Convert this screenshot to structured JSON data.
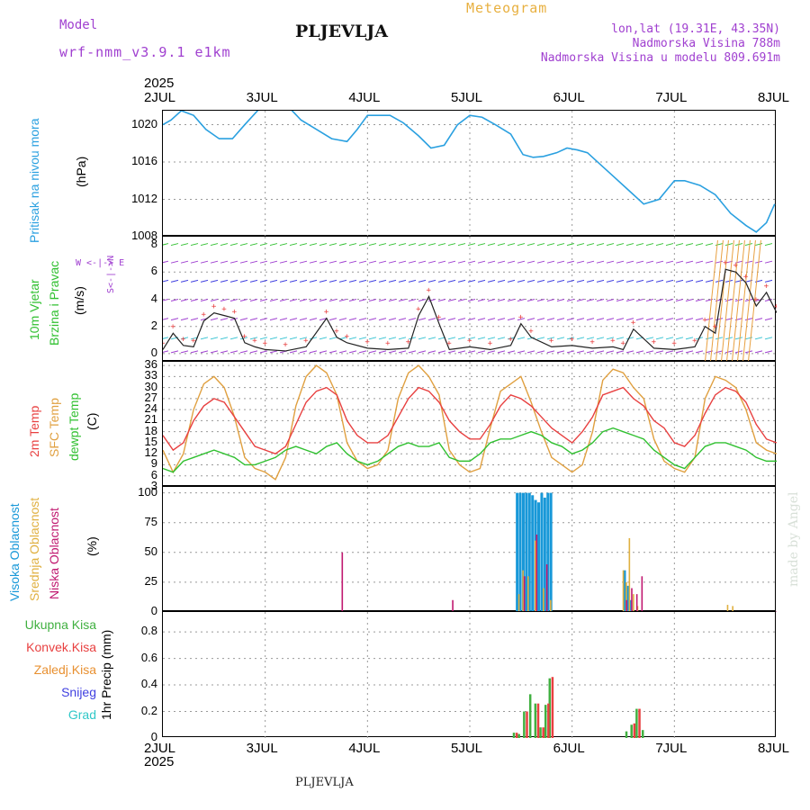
{
  "header": {
    "model_label": "Model",
    "model_value": "wrf-nmm_v3.9.1 e1km",
    "station": "PLJEVLJA",
    "title": "Meteogram",
    "coords": "lon,lat (19.31E, 43.35N)",
    "elevation": "Nadmorska Visina 788m",
    "model_elevation": "Nadmorska Visina u modelu 809.691m",
    "year_top": "2025",
    "year_bottom": "2025",
    "footer_station": "PLJEVLJA",
    "made_by": "made by Angel"
  },
  "day_labels": [
    "2JUL",
    "3JUL",
    "4JUL",
    "5JUL",
    "6JUL",
    "7JUL",
    "8JUL"
  ],
  "colors": {
    "pressure": "#2aa0e0",
    "temp2m": "#e84040",
    "sfc_temp": "#e0a040",
    "dewpt": "#30c030",
    "high_cloud": "#1898d8",
    "mid_cloud": "#e0b040",
    "low_cloud": "#c01870",
    "total_precip": "#40b040",
    "conv_precip": "#e84040",
    "strat_precip": "#e89030",
    "snow": "#4040e0",
    "hail": "#30c8c8",
    "wind_speed": "#222222",
    "gust": "#e84040"
  },
  "panels": {
    "pressure": {
      "labels": [
        "Pritisak na nivou mora",
        "(hPa)"
      ],
      "yticks": [
        "1008",
        "1012",
        "1016",
        "1020"
      ]
    },
    "wind": {
      "labels": [
        "10m Vjetar",
        "Brzina i Pravac",
        "(m/s)"
      ],
      "compass": "W <-|-> E",
      "compass_ns": "S<-|->N",
      "yticks": [
        "0",
        "2",
        "4",
        "6",
        "8"
      ]
    },
    "temp": {
      "labels": [
        "2m Temp",
        "SFC Temp",
        "dewpt Temp",
        "(C)"
      ],
      "yticks": [
        "3",
        "6",
        "9",
        "12",
        "15",
        "18",
        "21",
        "24",
        "27",
        "30",
        "33",
        "36"
      ]
    },
    "cloud": {
      "labels": [
        "Visoka Oblacnost",
        "Srednja Oblacnost",
        "Niska Oblacnost",
        "(%)"
      ],
      "yticks": [
        "0",
        "25",
        "50",
        "75",
        "100"
      ]
    },
    "precip": {
      "labels": [
        "Ukupna Kisa",
        "Konvek.Kisa",
        "Zaledj.Kisa",
        "Snijeg",
        "Grad"
      ],
      "ylabel": "1hr Precip (mm)",
      "yticks": [
        "0",
        "0.2",
        "0.4",
        "0.6",
        "0.8"
      ]
    }
  },
  "chart_data": [
    {
      "type": "line",
      "title": "Pritisak na nivou mora",
      "ylabel": "(hPa)",
      "x_unit": "days since 2JUL 00",
      "ylim": [
        1008,
        1021.5
      ],
      "series": [
        {
          "name": "Pritisak na nivou mora",
          "x": [
            0,
            0.08,
            0.18,
            0.3,
            0.42,
            0.55,
            0.68,
            0.8,
            0.95,
            1.1,
            1.22,
            1.35,
            1.5,
            1.65,
            1.8,
            1.9,
            2.0,
            2.1,
            2.22,
            2.35,
            2.5,
            2.62,
            2.75,
            2.88,
            3.0,
            3.12,
            3.25,
            3.4,
            3.52,
            3.62,
            3.72,
            3.85,
            3.95,
            4.05,
            4.15,
            4.25,
            4.4,
            4.55,
            4.7,
            4.85,
            5.0,
            5.1,
            5.25,
            5.4,
            5.55,
            5.7,
            5.8,
            5.9,
            5.98
          ],
          "y": [
            1020,
            1020.5,
            1021.5,
            1021,
            1019.5,
            1018.5,
            1018.5,
            1020,
            1021.8,
            1021.8,
            1022,
            1020.5,
            1019.5,
            1018.5,
            1018.2,
            1019.5,
            1021,
            1021,
            1021,
            1020.2,
            1018.8,
            1017.5,
            1017.8,
            1020,
            1021,
            1020.8,
            1020,
            1019,
            1016.8,
            1016.5,
            1016.6,
            1017,
            1017.5,
            1017.3,
            1017,
            1016,
            1014.5,
            1013,
            1011.5,
            1012,
            1014,
            1014,
            1013.5,
            1012.5,
            1010.5,
            1009.2,
            1008.5,
            1009.5,
            1011.5
          ]
        }
      ]
    },
    {
      "type": "line",
      "title": "10m Vjetar Brzina i Pravac",
      "ylabel": "(m/s)",
      "ylim": [
        -0.6,
        8.6
      ],
      "series": [
        {
          "name": "Brzina",
          "x": [
            0,
            0.1,
            0.2,
            0.3,
            0.4,
            0.5,
            0.6,
            0.7,
            0.8,
            0.9,
            1.0,
            1.2,
            1.4,
            1.6,
            1.7,
            1.8,
            2.0,
            2.2,
            2.4,
            2.5,
            2.6,
            2.7,
            2.8,
            3.0,
            3.2,
            3.4,
            3.5,
            3.6,
            3.8,
            4.0,
            4.2,
            4.4,
            4.5,
            4.6,
            4.8,
            5.0,
            5.2,
            5.3,
            5.4,
            5.5,
            5.6,
            5.7,
            5.8,
            5.9,
            6.0
          ],
          "y": [
            0.3,
            1.5,
            0.6,
            0.5,
            2.4,
            3.0,
            2.8,
            2.6,
            0.8,
            0.5,
            0.3,
            0.2,
            0.5,
            2.6,
            1.2,
            0.8,
            0.4,
            0.3,
            0.4,
            2.8,
            4.2,
            2.2,
            0.3,
            0.5,
            0.3,
            0.6,
            2.2,
            1.2,
            0.5,
            0.6,
            0.4,
            0.5,
            0.3,
            1.8,
            0.4,
            0.3,
            0.5,
            2.0,
            1.5,
            6.2,
            6.0,
            5.2,
            3.5,
            4.5,
            3.0
          ]
        }
      ]
    },
    {
      "type": "line",
      "title": "2m Temp / SFC Temp / dewpt Temp",
      "ylabel": "(C)",
      "ylim": [
        3,
        37
      ],
      "series": [
        {
          "name": "2m Temp",
          "x": [
            0,
            0.1,
            0.2,
            0.3,
            0.4,
            0.5,
            0.6,
            0.7,
            0.8,
            0.9,
            1.0,
            1.1,
            1.2,
            1.3,
            1.4,
            1.5,
            1.6,
            1.7,
            1.8,
            1.9,
            2.0,
            2.1,
            2.2,
            2.3,
            2.4,
            2.5,
            2.6,
            2.7,
            2.8,
            2.9,
            3.0,
            3.1,
            3.2,
            3.3,
            3.4,
            3.5,
            3.6,
            3.7,
            3.8,
            3.9,
            4.0,
            4.1,
            4.2,
            4.3,
            4.4,
            4.5,
            4.6,
            4.7,
            4.8,
            4.9,
            5.0,
            5.1,
            5.2,
            5.3,
            5.4,
            5.5,
            5.6,
            5.7,
            5.8,
            5.9,
            6.0
          ],
          "y": [
            17,
            13,
            15,
            21,
            25,
            27,
            26,
            22,
            18,
            14,
            13,
            12,
            14,
            20,
            26,
            29,
            30,
            28,
            21,
            17,
            15,
            15,
            17,
            22,
            27,
            30,
            29,
            26,
            21,
            18,
            16,
            16,
            20,
            25,
            28,
            27,
            25,
            22,
            19,
            17,
            15,
            18,
            22,
            28,
            29,
            30,
            27,
            25,
            21,
            19,
            15,
            14,
            17,
            23,
            28,
            30,
            29,
            26,
            20,
            16,
            15
          ]
        },
        {
          "name": "SFC Temp",
          "x": [
            0,
            0.1,
            0.2,
            0.3,
            0.4,
            0.5,
            0.6,
            0.7,
            0.8,
            0.9,
            1.0,
            1.1,
            1.2,
            1.3,
            1.4,
            1.5,
            1.6,
            1.7,
            1.8,
            1.9,
            2.0,
            2.1,
            2.2,
            2.3,
            2.4,
            2.5,
            2.6,
            2.7,
            2.8,
            2.9,
            3.0,
            3.1,
            3.2,
            3.3,
            3.4,
            3.5,
            3.6,
            3.7,
            3.8,
            3.9,
            4.0,
            4.1,
            4.2,
            4.3,
            4.4,
            4.5,
            4.6,
            4.7,
            4.8,
            4.9,
            5.0,
            5.1,
            5.2,
            5.3,
            5.4,
            5.5,
            5.6,
            5.7,
            5.8,
            5.9,
            6.0
          ],
          "y": [
            13,
            7,
            12,
            24,
            31,
            33,
            30,
            22,
            11,
            8,
            7,
            5,
            11,
            25,
            33,
            36,
            34,
            28,
            15,
            10,
            8,
            9,
            13,
            27,
            34,
            36,
            33,
            28,
            13,
            9,
            7,
            8,
            19,
            29,
            31,
            33,
            26,
            18,
            11,
            9,
            7,
            9,
            18,
            32,
            35,
            34,
            30,
            27,
            16,
            10,
            8,
            7,
            11,
            27,
            33,
            32,
            30,
            24,
            15,
            13,
            12
          ]
        },
        {
          "name": "dewpt Temp",
          "x": [
            0,
            0.1,
            0.2,
            0.3,
            0.4,
            0.5,
            0.6,
            0.7,
            0.8,
            0.9,
            1.0,
            1.1,
            1.2,
            1.3,
            1.4,
            1.5,
            1.6,
            1.7,
            1.8,
            1.9,
            2.0,
            2.1,
            2.2,
            2.3,
            2.4,
            2.5,
            2.6,
            2.7,
            2.8,
            2.9,
            3.0,
            3.1,
            3.2,
            3.3,
            3.4,
            3.5,
            3.6,
            3.7,
            3.8,
            3.9,
            4.0,
            4.1,
            4.2,
            4.3,
            4.4,
            4.5,
            4.6,
            4.7,
            4.8,
            4.9,
            5.0,
            5.1,
            5.2,
            5.3,
            5.4,
            5.5,
            5.6,
            5.7,
            5.8,
            5.9,
            6.0
          ],
          "y": [
            8,
            7,
            10,
            11,
            12,
            13,
            12,
            11,
            9,
            9,
            10,
            11,
            13,
            14,
            13,
            12,
            14,
            15,
            12,
            10,
            9,
            10,
            12,
            14,
            15,
            14,
            14,
            15,
            11,
            10,
            10,
            12,
            15,
            16,
            16,
            17,
            18,
            17,
            15,
            14,
            12,
            13,
            15,
            18,
            19,
            18,
            17,
            16,
            13,
            11,
            9,
            8,
            11,
            14,
            15,
            15,
            14,
            13,
            11,
            10,
            10
          ]
        }
      ]
    },
    {
      "type": "bar",
      "title": "Oblacnost",
      "ylabel": "(%)",
      "ylim": [
        0,
        105
      ],
      "series": [
        {
          "name": "Visoka Oblacnost",
          "x": [
            3.45,
            3.48,
            3.51,
            3.54,
            3.57,
            3.6,
            3.63,
            3.66,
            3.69,
            3.72,
            3.75,
            3.78,
            4.5,
            4.53,
            4.56
          ],
          "y": [
            100,
            100,
            100,
            100,
            100,
            98,
            94,
            92,
            100,
            96,
            100,
            100,
            35,
            22,
            10
          ]
        },
        {
          "name": "Srednja Oblacnost",
          "x": [
            3.46,
            3.5,
            3.55,
            3.62,
            3.7,
            3.77,
            4.48,
            4.51,
            4.54,
            4.58,
            4.62,
            5.5,
            5.55
          ],
          "y": [
            15,
            35,
            30,
            60,
            20,
            10,
            35,
            25,
            62,
            15,
            5,
            6,
            5
          ]
        },
        {
          "name": "Niska Oblacnost",
          "x": [
            1.72,
            3.5,
            3.62,
            3.72,
            4.5,
            4.55,
            4.6,
            4.65,
            2.8
          ],
          "y": [
            50,
            30,
            65,
            40,
            10,
            20,
            15,
            30,
            10
          ]
        }
      ]
    },
    {
      "type": "bar",
      "title": "1hr Precip",
      "ylabel": "1hr Precip (mm)",
      "ylim": [
        0,
        0.95
      ],
      "series": [
        {
          "name": "Ukupna Kisa",
          "x": [
            3.42,
            3.47,
            3.52,
            3.58,
            3.63,
            3.68,
            3.73,
            3.77,
            4.52,
            4.57,
            4.62,
            4.68
          ],
          "y": [
            0.04,
            0.03,
            0.2,
            0.33,
            0.26,
            0.08,
            0.25,
            0.45,
            0.05,
            0.1,
            0.22,
            0.06
          ]
        },
        {
          "name": "Konvek.Kisa",
          "x": [
            3.43,
            3.53,
            3.64,
            3.69,
            3.74,
            3.78,
            4.58,
            4.63
          ],
          "y": [
            0.04,
            0.2,
            0.26,
            0.08,
            0.26,
            0.46,
            0.11,
            0.22
          ]
        }
      ]
    }
  ]
}
